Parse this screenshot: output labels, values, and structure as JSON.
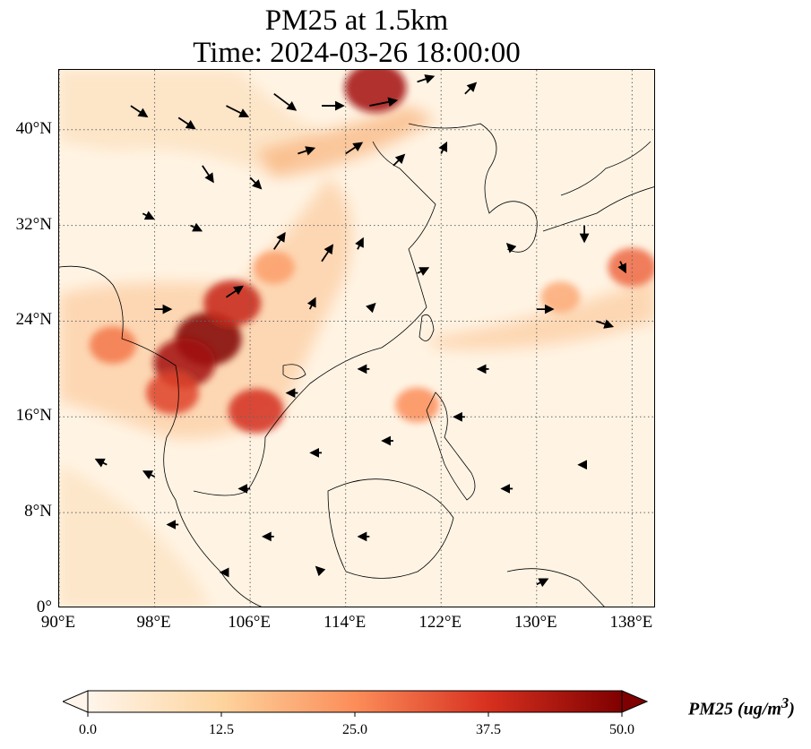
{
  "title": {
    "line1": "PM25 at 1.5km",
    "line2": "Time: 2024-03-26 18:00:00"
  },
  "map": {
    "lon_range": [
      90,
      140
    ],
    "lat_range": [
      0,
      45
    ],
    "lon_ticks": [
      "90°E",
      "98°E",
      "106°E",
      "114°E",
      "122°E",
      "130°E",
      "138°E"
    ],
    "lat_ticks": [
      "0°",
      "8°N",
      "16°N",
      "24°N",
      "32°N",
      "40°N"
    ],
    "lon_tick_values": [
      90,
      98,
      106,
      114,
      122,
      130,
      138
    ],
    "lat_tick_values": [
      0,
      8,
      16,
      24,
      32,
      40
    ],
    "gridlines": true,
    "gridline_style": "dotted",
    "coastlines": true,
    "background_color": "#fff4e4"
  },
  "chart_data": {
    "type": "heatmap",
    "variable": "PM25",
    "plume_regions": [
      {
        "lon": 102.5,
        "lat": 22.5,
        "value": 50
      },
      {
        "lon": 100.5,
        "lat": 20.5,
        "value": 45
      },
      {
        "lon": 104.5,
        "lat": 25.5,
        "value": 40
      },
      {
        "lon": 106.5,
        "lat": 16.5,
        "value": 38
      },
      {
        "lon": 99.5,
        "lat": 18.0,
        "value": 35
      },
      {
        "lon": 94.5,
        "lat": 22.0,
        "value": 28
      },
      {
        "lon": 116.5,
        "lat": 43.5,
        "value": 45
      },
      {
        "lon": 120.0,
        "lat": 17.0,
        "value": 25
      },
      {
        "lon": 108.0,
        "lat": 28.5,
        "value": 22
      },
      {
        "lon": 138.0,
        "lat": 28.5,
        "value": 30
      },
      {
        "lon": 132.0,
        "lat": 26.0,
        "value": 20
      }
    ],
    "wind_vectors": [
      {
        "lon": 96,
        "lat": 42,
        "u": 3,
        "v": -2
      },
      {
        "lon": 100,
        "lat": 41,
        "u": 3,
        "v": -2
      },
      {
        "lon": 104,
        "lat": 42,
        "u": 4,
        "v": -2
      },
      {
        "lon": 108,
        "lat": 43,
        "u": 4,
        "v": -3
      },
      {
        "lon": 112,
        "lat": 42,
        "u": 4,
        "v": 0
      },
      {
        "lon": 116,
        "lat": 42,
        "u": 5,
        "v": 1
      },
      {
        "lon": 120,
        "lat": 44,
        "u": 3,
        "v": 1
      },
      {
        "lon": 124,
        "lat": 43,
        "u": 2,
        "v": 2
      },
      {
        "lon": 102,
        "lat": 37,
        "u": 2,
        "v": -3
      },
      {
        "lon": 106,
        "lat": 36,
        "u": 2,
        "v": -2
      },
      {
        "lon": 110,
        "lat": 38,
        "u": 3,
        "v": 1
      },
      {
        "lon": 114,
        "lat": 38,
        "u": 3,
        "v": 2
      },
      {
        "lon": 118,
        "lat": 37,
        "u": 2,
        "v": 2
      },
      {
        "lon": 122,
        "lat": 38,
        "u": 1,
        "v": 2
      },
      {
        "lon": 97,
        "lat": 33,
        "u": 2,
        "v": -1
      },
      {
        "lon": 101,
        "lat": 32,
        "u": 2,
        "v": -1
      },
      {
        "lon": 108,
        "lat": 30,
        "u": 2,
        "v": 3
      },
      {
        "lon": 112,
        "lat": 29,
        "u": 2,
        "v": 3
      },
      {
        "lon": 115,
        "lat": 30,
        "u": 1,
        "v": 2
      },
      {
        "lon": 104,
        "lat": 26,
        "u": 3,
        "v": 2
      },
      {
        "lon": 98,
        "lat": 25,
        "u": 3,
        "v": 0
      },
      {
        "lon": 111,
        "lat": 25,
        "u": 1,
        "v": 2
      },
      {
        "lon": 116,
        "lat": 25,
        "u": 1,
        "v": 1
      },
      {
        "lon": 120,
        "lat": 28,
        "u": 2,
        "v": 1
      },
      {
        "lon": 128,
        "lat": 30,
        "u": -1,
        "v": 1
      },
      {
        "lon": 134,
        "lat": 32,
        "u": 0,
        "v": -3
      },
      {
        "lon": 137,
        "lat": 29,
        "u": 1,
        "v": -2
      },
      {
        "lon": 130,
        "lat": 25,
        "u": 3,
        "v": 0
      },
      {
        "lon": 135,
        "lat": 24,
        "u": 3,
        "v": -1
      },
      {
        "lon": 126,
        "lat": 20,
        "u": -2,
        "v": 0
      },
      {
        "lon": 116,
        "lat": 20,
        "u": -2,
        "v": 0
      },
      {
        "lon": 110,
        "lat": 18,
        "u": -2,
        "v": 0
      },
      {
        "lon": 124,
        "lat": 16,
        "u": -2,
        "v": 0
      },
      {
        "lon": 118,
        "lat": 14,
        "u": -2,
        "v": 0
      },
      {
        "lon": 112,
        "lat": 13,
        "u": -2,
        "v": 0
      },
      {
        "lon": 106,
        "lat": 10,
        "u": -2,
        "v": 0
      },
      {
        "lon": 98,
        "lat": 11,
        "u": -2,
        "v": 1
      },
      {
        "lon": 94,
        "lat": 12,
        "u": -2,
        "v": 1
      },
      {
        "lon": 100,
        "lat": 7,
        "u": -2,
        "v": 0
      },
      {
        "lon": 108,
        "lat": 6,
        "u": -2,
        "v": 0
      },
      {
        "lon": 116,
        "lat": 6,
        "u": -2,
        "v": 0
      },
      {
        "lon": 104,
        "lat": 3,
        "u": -1,
        "v": 0
      },
      {
        "lon": 112,
        "lat": 3,
        "u": -1,
        "v": 1
      },
      {
        "lon": 128,
        "lat": 10,
        "u": -2,
        "v": 0
      },
      {
        "lon": 134,
        "lat": 12,
        "u": -1,
        "v": 0
      },
      {
        "lon": 130,
        "lat": 2,
        "u": 2,
        "v": 1
      }
    ],
    "colorbar": {
      "min": 0.0,
      "max": 50.0,
      "ticks": [
        "0.0",
        "12.5",
        "25.0",
        "37.5",
        "50.0"
      ],
      "tick_values": [
        0,
        12.5,
        25,
        37.5,
        50
      ],
      "colors": [
        "#fff5eb",
        "#fdd49e",
        "#fc8d59",
        "#d7301f",
        "#7f0000"
      ],
      "extend": "both",
      "label": "PM25 (ug/m",
      "label_sup": "3",
      "label_close": ")"
    }
  }
}
